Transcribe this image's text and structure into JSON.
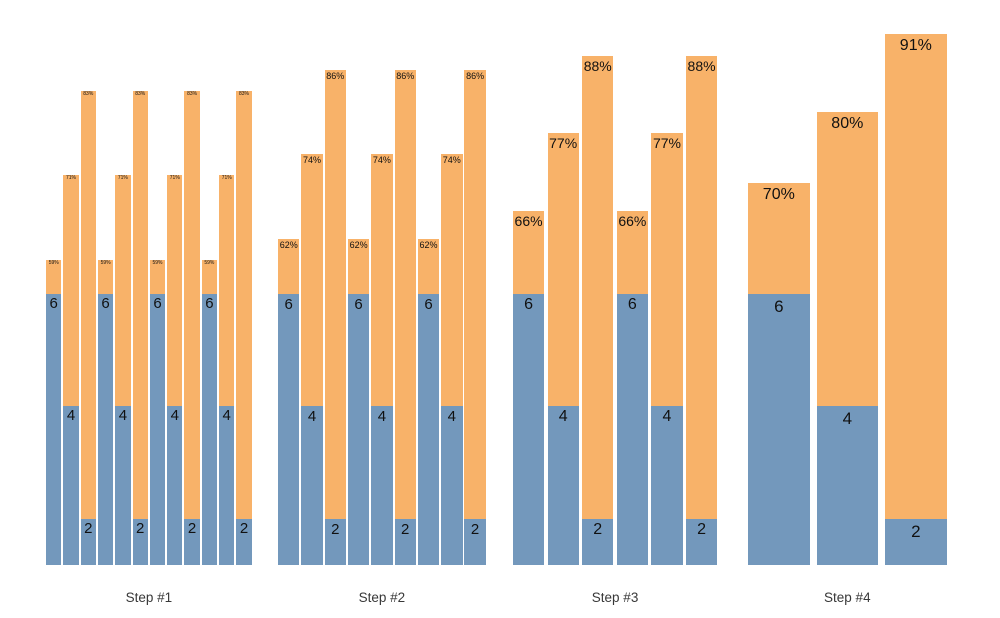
{
  "chart_data": {
    "type": "bar",
    "subtype": "grouped-stacked",
    "title": "",
    "xlabel": "",
    "ylabel": "",
    "grid": false,
    "legend": null,
    "background_color": "#ffffff",
    "colors": {
      "top_segment": "#F8B269",
      "bottom_segment": "#7398BC",
      "value_label_text": "#111111",
      "tick_label_text": "#383838"
    },
    "x_tick_labels": [
      "Step #1",
      "Step #2",
      "Step #3",
      "Step #4"
    ],
    "groups": [
      {
        "x_label": "Step #1",
        "bars": [
          {
            "percent": 59,
            "percent_label": "59%",
            "count": 6,
            "count_label": "6"
          },
          {
            "percent": 71,
            "percent_label": "71%",
            "count": 4,
            "count_label": "4"
          },
          {
            "percent": 83,
            "percent_label": "83%",
            "count": 2,
            "count_label": "2"
          },
          {
            "percent": 59,
            "percent_label": "59%",
            "count": 6,
            "count_label": "6"
          },
          {
            "percent": 71,
            "percent_label": "71%",
            "count": 4,
            "count_label": "4"
          },
          {
            "percent": 83,
            "percent_label": "83%",
            "count": 2,
            "count_label": "2"
          },
          {
            "percent": 59,
            "percent_label": "59%",
            "count": 6,
            "count_label": "6"
          },
          {
            "percent": 71,
            "percent_label": "71%",
            "count": 4,
            "count_label": "4"
          },
          {
            "percent": 83,
            "percent_label": "83%",
            "count": 2,
            "count_label": "2"
          },
          {
            "percent": 59,
            "percent_label": "59%",
            "count": 6,
            "count_label": "6"
          },
          {
            "percent": 71,
            "percent_label": "71%",
            "count": 4,
            "count_label": "4"
          },
          {
            "percent": 83,
            "percent_label": "83%",
            "count": 2,
            "count_label": "2"
          }
        ]
      },
      {
        "x_label": "Step #2",
        "bars": [
          {
            "percent": 62,
            "percent_label": "62%",
            "count": 6,
            "count_label": "6"
          },
          {
            "percent": 74,
            "percent_label": "74%",
            "count": 4,
            "count_label": "4"
          },
          {
            "percent": 86,
            "percent_label": "86%",
            "count": 2,
            "count_label": "2"
          },
          {
            "percent": 62,
            "percent_label": "62%",
            "count": 6,
            "count_label": "6"
          },
          {
            "percent": 74,
            "percent_label": "74%",
            "count": 4,
            "count_label": "4"
          },
          {
            "percent": 86,
            "percent_label": "86%",
            "count": 2,
            "count_label": "2"
          },
          {
            "percent": 62,
            "percent_label": "62%",
            "count": 6,
            "count_label": "6"
          },
          {
            "percent": 74,
            "percent_label": "74%",
            "count": 4,
            "count_label": "4"
          },
          {
            "percent": 86,
            "percent_label": "86%",
            "count": 2,
            "count_label": "2"
          }
        ]
      },
      {
        "x_label": "Step #3",
        "bars": [
          {
            "percent": 66,
            "percent_label": "66%",
            "count": 6,
            "count_label": "6"
          },
          {
            "percent": 77,
            "percent_label": "77%",
            "count": 4,
            "count_label": "4"
          },
          {
            "percent": 88,
            "percent_label": "88%",
            "count": 2,
            "count_label": "2"
          },
          {
            "percent": 66,
            "percent_label": "66%",
            "count": 6,
            "count_label": "6"
          },
          {
            "percent": 77,
            "percent_label": "77%",
            "count": 4,
            "count_label": "4"
          },
          {
            "percent": 88,
            "percent_label": "88%",
            "count": 2,
            "count_label": "2"
          }
        ]
      },
      {
        "x_label": "Step #4",
        "bars": [
          {
            "percent": 70,
            "percent_label": "70%",
            "count": 6,
            "count_label": "6"
          },
          {
            "percent": 80,
            "percent_label": "80%",
            "count": 4,
            "count_label": "4"
          },
          {
            "percent": 91,
            "percent_label": "91%",
            "count": 2,
            "count_label": "2"
          }
        ]
      }
    ]
  }
}
